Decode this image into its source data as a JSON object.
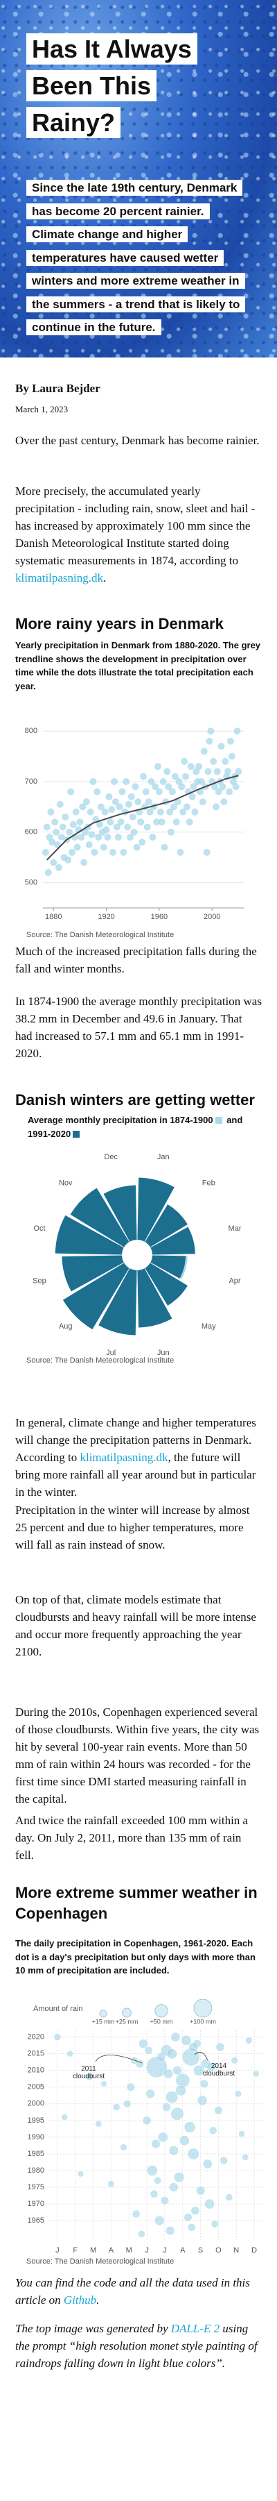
{
  "hero": {
    "title": "Has It Always Been This Rainy?",
    "subtitle": "Since the late 19th century, Denmark has become 20 percent rainier. Climate change and higher temperatures have caused wetter winters and more extreme weather in the summers - a trend that is likely to continue in the future."
  },
  "byline": {
    "author": "By Laura Bejder",
    "date": "March 1, 2023"
  },
  "paragraphs": [
    "Over the past century, Denmark has become rainier.",
    {
      "before": "More precisely, the accumulated yearly precipitation - including rain, snow, sleet and hail - has increased by approximately 100 mm since the Danish Meteorological Institute started doing systematic measurements in 1874, according to ",
      "link": "klimatilpasning.dk",
      "after": "."
    },
    "Much of the increased precipitation falls during the fall and winter months.",
    "In 1874-1900 the average monthly precipitation was 38.2 mm in December and 49.6 in January. That had increased to 57.1 mm and 65.1 mm in 1991-2020.",
    {
      "before": "In general, climate change and higher temperatures will change the precipitation patterns in Denmark. According to ",
      "link": "klimatilpasning.dk",
      "after": ", the future will bring more rainfall all year around but in particular in the winter."
    },
    "Precipitation in the winter will increase by almost 25 percent and due to higher temperatures, more will fall as rain instead of snow.",
    "On top of that, climate models estimate that cloudbursts and heavy rainfall will be more intense and occur more frequently approaching the year 2100.",
    "During the 2010s, Copenhagen experienced several of those cloudbursts. Within five years, the city was hit by several 100-year rain events. More than 50 mm of rain within 24 hours was recorded - for the first time since DMI started measuring rainfall in the capital.",
    "And twice the rainfall exceeded 100 mm within a day. On July 2, 2011, more than 135 mm of rain fell.",
    {
      "before": "You can find the code and all the data used in this article on ",
      "link": "Github",
      "after": "."
    },
    {
      "before": "The top image was generated by ",
      "link": "DALL-E 2",
      "after": " using the prompt “high resolution monet style painting of raindrops falling down in light blue colors”."
    }
  ],
  "headings": [
    "More rainy years in Denmark",
    "Danish winters are getting wetter",
    "More extreme summer weather in Copenhagen"
  ],
  "chart_data": [
    {
      "type": "scatter",
      "title": "Yearly precipitation in Denmark from 1880-2020. The grey trendline shows the development in precipitation over time while the dots illustrate the total precipitation each year.",
      "source": "Source: The Danish Meteorological Institute",
      "color": "#a8d8ea",
      "trend_color": "#4a4a4a",
      "xlim": [
        1872,
        2024
      ],
      "xticks": [
        1880,
        1920,
        1960,
        2000
      ],
      "ylim": [
        450,
        825
      ],
      "yticks": [
        500,
        600,
        700,
        800
      ],
      "grid": true,
      "x": [
        1874,
        1875,
        1876,
        1877,
        1878,
        1879,
        1880,
        1881,
        1882,
        1883,
        1884,
        1885,
        1886,
        1887,
        1888,
        1889,
        1890,
        1891,
        1892,
        1893,
        1894,
        1895,
        1896,
        1897,
        1898,
        1899,
        1900,
        1901,
        1902,
        1903,
        1904,
        1905,
        1906,
        1907,
        1908,
        1909,
        1910,
        1911,
        1912,
        1913,
        1914,
        1915,
        1916,
        1917,
        1918,
        1919,
        1920,
        1921,
        1922,
        1923,
        1924,
        1925,
        1926,
        1927,
        1928,
        1929,
        1930,
        1931,
        1932,
        1933,
        1934,
        1935,
        1936,
        1937,
        1938,
        1939,
        1940,
        1941,
        1942,
        1943,
        1944,
        1945,
        1946,
        1947,
        1948,
        1949,
        1950,
        1951,
        1952,
        1953,
        1954,
        1955,
        1956,
        1957,
        1958,
        1959,
        1960,
        1961,
        1962,
        1963,
        1964,
        1965,
        1966,
        1967,
        1968,
        1969,
        1970,
        1971,
        1972,
        1973,
        1974,
        1975,
        1976,
        1977,
        1978,
        1979,
        1980,
        1981,
        1982,
        1983,
        1984,
        1985,
        1986,
        1987,
        1988,
        1989,
        1990,
        1991,
        1992,
        1993,
        1994,
        1995,
        1996,
        1997,
        1998,
        1999,
        2000,
        2001,
        2002,
        2003,
        2004,
        2005,
        2006,
        2007,
        2008,
        2009,
        2010,
        2011,
        2012,
        2013,
        2014,
        2015,
        2016,
        2017,
        2018,
        2019,
        2020
      ],
      "values": [
        560,
        610,
        520,
        590,
        640,
        580,
        540,
        620,
        600,
        575,
        530,
        655,
        590,
        610,
        550,
        630,
        585,
        545,
        600,
        680,
        560,
        615,
        590,
        640,
        570,
        605,
        620,
        590,
        650,
        540,
        600,
        660,
        610,
        575,
        640,
        595,
        700,
        560,
        625,
        680,
        590,
        615,
        650,
        600,
        570,
        640,
        605,
        590,
        670,
        620,
        645,
        560,
        700,
        660,
        610,
        590,
        650,
        620,
        680,
        560,
        640,
        700,
        610,
        655,
        590,
        670,
        630,
        600,
        690,
        570,
        660,
        640,
        620,
        580,
        710,
        650,
        680,
        610,
        660,
        640,
        700,
        590,
        650,
        690,
        620,
        730,
        680,
        640,
        620,
        700,
        570,
        660,
        720,
        690,
        640,
        600,
        680,
        650,
        710,
        620,
        660,
        700,
        560,
        690,
        640,
        740,
        710,
        650,
        680,
        620,
        730,
        670,
        690,
        640,
        720,
        700,
        730,
        680,
        700,
        660,
        760,
        690,
        560,
        720,
        780,
        800,
        700,
        740,
        690,
        650,
        720,
        680,
        700,
        770,
        690,
        660,
        740,
        710,
        720,
        680,
        780,
        750,
        700,
        710,
        690,
        800,
        720
      ],
      "trend_x": [
        1875,
        1890,
        1910,
        1930,
        1950,
        1970,
        1990,
        2010,
        2020
      ],
      "trend_values": [
        545,
        585,
        618,
        635,
        648,
        662,
        685,
        705,
        712
      ]
    },
    {
      "type": "radial_bar",
      "title": "Average monthly precipitation in",
      "legend_joiner": "and",
      "source": "Source: The Danish Meteorological Institute",
      "categories": [
        "Jan",
        "Feb",
        "Mar",
        "Apr",
        "May",
        "Jun",
        "Jul",
        "Aug",
        "Sep",
        "Oct",
        "Nov",
        "Dec"
      ],
      "rlim": [
        0,
        80
      ],
      "series": [
        {
          "name": "1874-1900",
          "color": "#a9d9ea",
          "values": [
            49.6,
            35,
            38,
            37,
            42,
            50,
            68,
            70,
            62,
            65,
            52,
            38.2
          ]
        },
        {
          "name": "1991-2020",
          "color": "#1c6f8f",
          "values": [
            65.1,
            46,
            45,
            35,
            46,
            60,
            68,
            75,
            63,
            70,
            66,
            57.1
          ]
        }
      ]
    },
    {
      "type": "bubble",
      "title": "The daily precipitation in Copenhagen, 1961-2020. Each dot is a day's precipitation but only days with more than 10 mm of precipitation are included.",
      "source": "Source: The Danish Meteorological Institute",
      "color": "#9fd3e6",
      "grid": true,
      "size_title": "Amount of rain",
      "size_legend": [
        {
          "value": 15,
          "label": "+15 mm"
        },
        {
          "value": 25,
          "label": "+25 mm"
        },
        {
          "value": 50,
          "label": "+50 mm"
        },
        {
          "value": 100,
          "label": "+100 mm"
        }
      ],
      "annotations": [
        "2011 cloudburst",
        "2014 cloudburst"
      ],
      "xlim": [
        0,
        12
      ],
      "xticks": [
        {
          "value": 0.5,
          "label": "J"
        },
        {
          "value": 1.5,
          "label": "F"
        },
        {
          "value": 2.5,
          "label": "M"
        },
        {
          "value": 3.5,
          "label": "A"
        },
        {
          "value": 4.5,
          "label": "M"
        },
        {
          "value": 5.5,
          "label": "J"
        },
        {
          "value": 6.5,
          "label": "J"
        },
        {
          "value": 7.5,
          "label": "A"
        },
        {
          "value": 8.5,
          "label": "S"
        },
        {
          "value": 9.5,
          "label": "O"
        },
        {
          "value": 10.5,
          "label": "N"
        },
        {
          "value": 11.5,
          "label": "D"
        }
      ],
      "ylim": [
        1959,
        2022
      ],
      "yticks": [
        1965,
        1970,
        1975,
        1980,
        1985,
        1990,
        1995,
        2000,
        2005,
        2010,
        2015,
        2020
      ],
      "x": [
        6.05,
        7.97,
        7.5,
        6.6,
        5.3,
        8.4,
        6.9,
        7.2,
        6.4,
        8.1,
        5.8,
        7.0,
        9.0,
        6.2,
        4.6,
        3.8,
        9.6,
        10.4,
        1.2,
        2.3,
        0.5,
        11.2,
        7.7,
        8.8,
        5.1,
        6.7,
        7.4,
        8.6,
        5.5,
        7.9,
        6.0,
        8.9,
        7.3,
        5.9,
        8.2,
        6.8,
        9.3,
        4.9,
        10.1,
        3.5,
        9.8,
        4.2,
        10.8,
        2.8,
        9.5,
        4.4,
        10.6,
        3.1,
        9.1,
        5.6,
        8.3,
        7.1,
        6.3,
        1.8,
        0.9,
        11.6,
        11.0,
        7.6,
        6.5,
        8.0,
        5.2,
        7.8,
        6.1,
        9.2,
        5.7,
        8.7,
        6.9,
        7.2,
        4.8,
        8.5,
        7.0,
        6.6,
        8.1
      ],
      "y": [
        2011,
        2014,
        2007,
        2016,
        2018,
        2010,
        2002,
        1997,
        1990,
        1985,
        1980,
        1975,
        1970,
        1965,
        2005,
        1999,
        2017,
        2013,
        2015,
        2008,
        2020,
        2019,
        2019,
        2012,
        2012,
        2009,
        2004,
        2001,
        1995,
        1993,
        1988,
        1982,
        1978,
        1973,
        1968,
        1962,
        1964,
        1967,
        1972,
        1976,
        1983,
        1987,
        1991,
        1994,
        1998,
        2000,
        2003,
        2006,
        2011,
        2016,
        2018,
        2020,
        2014,
        1979,
        1996,
        2009,
        1984,
        1989,
        1971,
        1963,
        1961,
        1966,
        1977,
        1992,
        2003,
        2006,
        2015,
        2010,
        2013,
        1974,
        1986,
        1999,
        2017
      ],
      "sizes": [
        135,
        95,
        60,
        40,
        25,
        35,
        45,
        50,
        30,
        40,
        35,
        25,
        30,
        28,
        20,
        15,
        22,
        14,
        12,
        13,
        15,
        14,
        30,
        28,
        20,
        26,
        34,
        30,
        22,
        38,
        24,
        26,
        32,
        18,
        22,
        24,
        16,
        18,
        15,
        13,
        18,
        14,
        12,
        12,
        20,
        17,
        13,
        11,
        24,
        18,
        20,
        26,
        22,
        11,
        12,
        12,
        13,
        30,
        20,
        18,
        15,
        20,
        16,
        18,
        25,
        20,
        32,
        24,
        16,
        24,
        28,
        22,
        26
      ]
    }
  ]
}
